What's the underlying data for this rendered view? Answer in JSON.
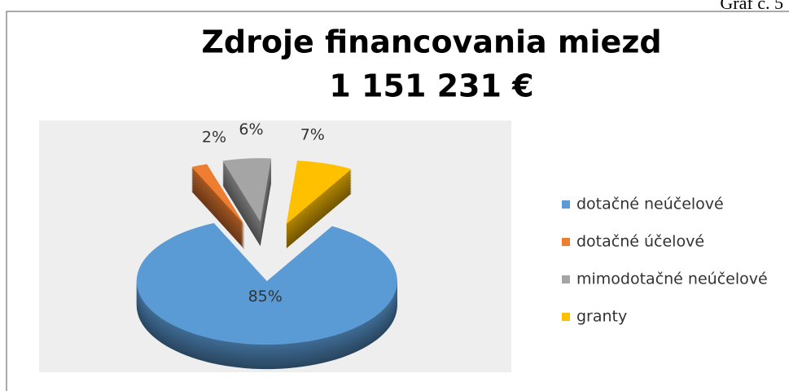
{
  "chart_data": {
    "type": "pie",
    "caption": "Graf č. 5",
    "title": "Zdroje financovania miezd",
    "subtitle": "1 151 231 €",
    "categories": [
      "dotačné neúčelové",
      "dotačné účelové",
      "mimodotačné neúčelové",
      "granty"
    ],
    "values": [
      85,
      2,
      6,
      7
    ],
    "value_labels": [
      "85%",
      "2%",
      "6%",
      "7%"
    ],
    "colors": [
      "#5b9bd5",
      "#ed7d31",
      "#a5a5a5",
      "#ffc000"
    ],
    "legend": "right"
  }
}
